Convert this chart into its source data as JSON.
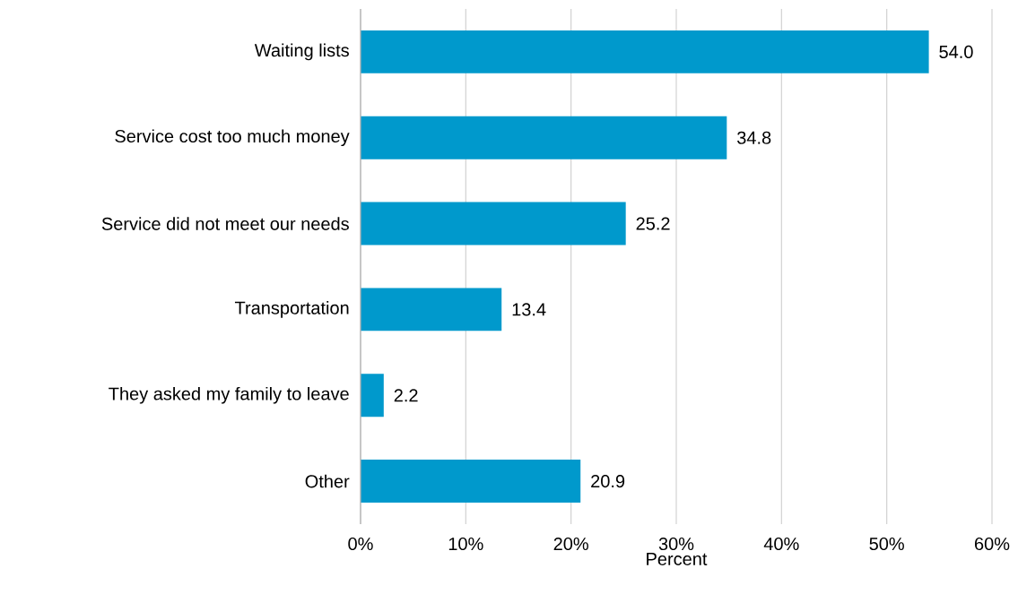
{
  "chart_data": {
    "type": "bar",
    "orientation": "horizontal",
    "xlabel": "Percent",
    "categories": [
      "Waiting lists",
      "Service cost too much money",
      "Service did not meet our needs",
      "Transportation",
      "They asked my family to leave",
      "Other"
    ],
    "values": [
      54.0,
      34.8,
      25.2,
      13.4,
      2.2,
      20.9
    ],
    "value_labels": [
      "54.0",
      "34.8",
      "25.2",
      "13.4",
      "2.2",
      "20.9"
    ],
    "color": "#0099cc",
    "xlim": [
      0,
      60
    ],
    "xticks": [
      {
        "value": 0,
        "label": "0%"
      },
      {
        "value": 10,
        "label": "10%"
      },
      {
        "value": 20,
        "label": "20%"
      },
      {
        "value": 30,
        "label": "30%"
      },
      {
        "value": 40,
        "label": "40%"
      },
      {
        "value": 50,
        "label": "50%"
      },
      {
        "value": 60,
        "label": "60%"
      }
    ],
    "grid": "x"
  }
}
